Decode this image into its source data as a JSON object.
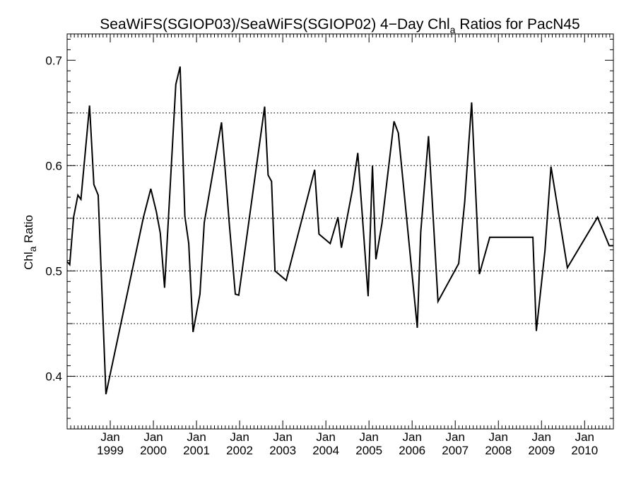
{
  "chart_data": {
    "type": "line",
    "title_main": "SeaWiFS(SGIOP03)/SeaWiFS(SGIOP02) 4−Day Chl",
    "title_sub": "a",
    "title_rest": " Ratios for PacN45",
    "ylabel_main": "Chl",
    "ylabel_sub": "a",
    "ylabel_rest": " Ratio",
    "ylim": [
      0.35,
      0.725
    ],
    "xlim": [
      1998.0,
      2010.667
    ],
    "yticks_major": [
      0.4,
      0.5,
      0.6,
      0.7
    ],
    "ytick_labels": [
      "0.4",
      "0.5",
      "0.6",
      "0.7"
    ],
    "yticks_minor_step": 0.01,
    "gridlines_y": [
      0.4,
      0.45,
      0.5,
      0.55,
      0.6,
      0.65
    ],
    "xticks": [
      1999,
      2000,
      2001,
      2002,
      2003,
      2004,
      2005,
      2006,
      2007,
      2008,
      2009,
      2010
    ],
    "xtick_month": "Jan",
    "xtick_labels": [
      "1999",
      "2000",
      "2001",
      "2002",
      "2003",
      "2004",
      "2005",
      "2006",
      "2007",
      "2008",
      "2009",
      "2010"
    ],
    "grid": "horizontal dotted",
    "series": [
      {
        "x": [
          1998.0,
          1998.06,
          1998.15,
          1998.25,
          1998.32,
          1998.52,
          1998.62,
          1998.72,
          1998.9,
          1999.77,
          1999.94,
          2000.07,
          2000.16,
          2000.26,
          2000.52,
          2000.62,
          2000.73,
          2000.82,
          2000.92,
          2001.08,
          2001.18,
          2001.58,
          2001.76,
          2001.9,
          2001.98,
          2002.58,
          2002.66,
          2002.74,
          2002.82,
          2003.08,
          2003.74,
          2003.84,
          2004.1,
          2004.28,
          2004.36,
          2004.62,
          2004.74,
          2004.98,
          2005.08,
          2005.16,
          2005.3,
          2005.58,
          2005.68,
          2006.12,
          2006.2,
          2006.38,
          2006.6,
          2007.08,
          2007.22,
          2007.38,
          2007.56,
          2007.8,
          2008.8,
          2008.88,
          2009.08,
          2009.22,
          2009.6,
          2010.3,
          2010.57,
          2010.667
        ],
        "y": [
          0.509,
          0.506,
          0.551,
          0.572,
          0.568,
          0.657,
          0.582,
          0.572,
          0.383,
          0.551,
          0.578,
          0.556,
          0.536,
          0.484,
          0.677,
          0.694,
          0.552,
          0.526,
          0.442,
          0.478,
          0.546,
          0.641,
          0.545,
          0.478,
          0.477,
          0.656,
          0.591,
          0.585,
          0.5,
          0.491,
          0.596,
          0.535,
          0.526,
          0.551,
          0.522,
          0.578,
          0.612,
          0.476,
          0.6,
          0.511,
          0.545,
          0.642,
          0.631,
          0.446,
          0.537,
          0.628,
          0.471,
          0.507,
          0.566,
          0.66,
          0.497,
          0.532,
          0.532,
          0.443,
          0.519,
          0.599,
          0.503,
          0.551,
          0.524,
          0.524
        ]
      }
    ]
  }
}
